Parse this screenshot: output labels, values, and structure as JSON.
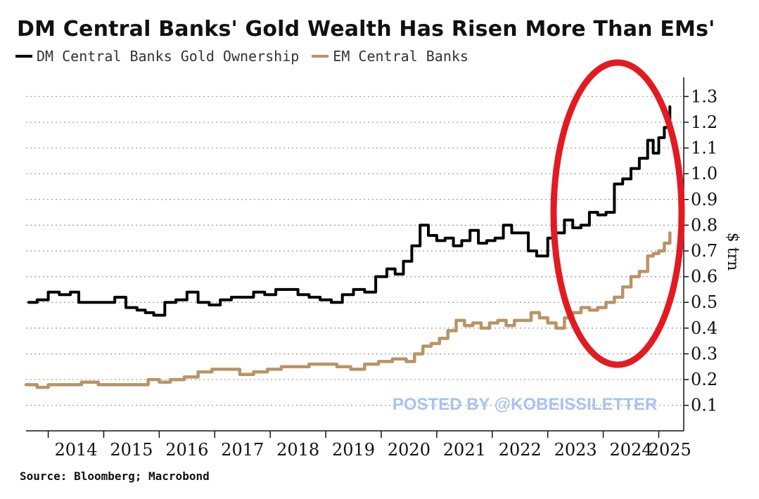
{
  "chart_data": {
    "type": "line",
    "title": "DM Central Banks' Gold Wealth Has Risen More Than EMs'",
    "ylabel": "$ trn",
    "xlabel": "",
    "ylim": [
      0.05,
      1.32
    ],
    "xlim": [
      2013.6,
      2025.45
    ],
    "y_ticks": [
      0.1,
      0.2,
      0.3,
      0.4,
      0.5,
      0.6,
      0.7,
      0.8,
      0.9,
      1.0,
      1.1,
      1.2,
      1.3
    ],
    "y_tick_labels": [
      "0.1",
      "0.2",
      "0.3",
      "0.4",
      "0.5",
      "0.6",
      "0.7",
      "0.8",
      "0.9",
      "1.0",
      "1.1",
      "1.2",
      "1.3"
    ],
    "x_tick_labels": [
      "2014",
      "2015",
      "2016",
      "2017",
      "2018",
      "2019",
      "2020",
      "2021",
      "2022",
      "2023",
      "2024",
      "2025"
    ],
    "x_tick_positions": [
      2014.5,
      2015.5,
      2016.5,
      2017.5,
      2018.5,
      2019.5,
      2020.5,
      2021.5,
      2022.5,
      2023.5,
      2024.5,
      2025.2
    ],
    "legend_position": "top-left",
    "grid": true,
    "series": [
      {
        "name": "DM Central Banks Gold Ownership",
        "color": "#000000",
        "x": [
          2013.65,
          2013.8,
          2014.0,
          2014.2,
          2014.4,
          2014.55,
          2014.8,
          2015.0,
          2015.2,
          2015.4,
          2015.6,
          2015.75,
          2015.9,
          2016.1,
          2016.3,
          2016.5,
          2016.7,
          2016.9,
          2017.1,
          2017.3,
          2017.5,
          2017.7,
          2017.9,
          2018.1,
          2018.3,
          2018.5,
          2018.7,
          2018.9,
          2019.1,
          2019.3,
          2019.5,
          2019.7,
          2019.9,
          2020.1,
          2020.25,
          2020.4,
          2020.55,
          2020.7,
          2020.85,
          2021.0,
          2021.15,
          2021.3,
          2021.45,
          2021.6,
          2021.75,
          2021.9,
          2022.05,
          2022.2,
          2022.35,
          2022.5,
          2022.65,
          2022.8,
          2023.0,
          2023.15,
          2023.3,
          2023.45,
          2023.6,
          2023.75,
          2023.9,
          2024.05,
          2024.2,
          2024.35,
          2024.5,
          2024.65,
          2024.8,
          2024.9,
          2025.0,
          2025.1,
          2025.2
        ],
        "values": [
          0.5,
          0.51,
          0.54,
          0.53,
          0.54,
          0.5,
          0.5,
          0.5,
          0.52,
          0.48,
          0.47,
          0.46,
          0.45,
          0.5,
          0.51,
          0.54,
          0.5,
          0.49,
          0.51,
          0.52,
          0.52,
          0.54,
          0.53,
          0.55,
          0.55,
          0.53,
          0.52,
          0.51,
          0.5,
          0.53,
          0.55,
          0.54,
          0.6,
          0.63,
          0.61,
          0.66,
          0.72,
          0.8,
          0.76,
          0.74,
          0.75,
          0.72,
          0.74,
          0.78,
          0.73,
          0.74,
          0.75,
          0.8,
          0.77,
          0.77,
          0.7,
          0.68,
          0.75,
          0.77,
          0.82,
          0.79,
          0.8,
          0.85,
          0.84,
          0.85,
          0.96,
          0.98,
          1.02,
          1.06,
          1.13,
          1.08,
          1.14,
          1.18,
          1.26
        ]
      },
      {
        "name": "EM Central Banks",
        "color": "#b89466",
        "x": [
          2013.6,
          2013.8,
          2014.0,
          2014.3,
          2014.6,
          2014.9,
          2015.2,
          2015.5,
          2015.8,
          2016.0,
          2016.2,
          2016.45,
          2016.7,
          2016.95,
          2017.2,
          2017.45,
          2017.7,
          2017.95,
          2018.2,
          2018.45,
          2018.7,
          2018.95,
          2019.2,
          2019.45,
          2019.7,
          2019.95,
          2020.2,
          2020.45,
          2020.6,
          2020.75,
          2020.9,
          2021.05,
          2021.2,
          2021.35,
          2021.5,
          2021.65,
          2021.8,
          2021.95,
          2022.1,
          2022.25,
          2022.4,
          2022.55,
          2022.7,
          2022.85,
          2023.0,
          2023.15,
          2023.3,
          2023.45,
          2023.6,
          2023.75,
          2023.9,
          2024.05,
          2024.2,
          2024.35,
          2024.5,
          2024.65,
          2024.8,
          2024.9,
          2025.0,
          2025.1,
          2025.2
        ],
        "values": [
          0.18,
          0.17,
          0.18,
          0.18,
          0.19,
          0.18,
          0.18,
          0.18,
          0.2,
          0.19,
          0.2,
          0.21,
          0.23,
          0.24,
          0.24,
          0.22,
          0.23,
          0.24,
          0.25,
          0.25,
          0.26,
          0.26,
          0.25,
          0.24,
          0.26,
          0.27,
          0.28,
          0.27,
          0.3,
          0.33,
          0.34,
          0.36,
          0.39,
          0.43,
          0.41,
          0.42,
          0.4,
          0.42,
          0.43,
          0.41,
          0.43,
          0.43,
          0.46,
          0.44,
          0.42,
          0.4,
          0.44,
          0.46,
          0.48,
          0.47,
          0.48,
          0.5,
          0.52,
          0.56,
          0.6,
          0.62,
          0.68,
          0.69,
          0.7,
          0.73,
          0.77
        ]
      }
    ],
    "annotations": [
      {
        "type": "ellipse",
        "color": "#e21b22",
        "label": "highlight 2023-2025 rise"
      }
    ],
    "watermark": "POSTED BY @KOBEISSILETTER",
    "source": "Source: Bloomberg; Macrobond"
  }
}
